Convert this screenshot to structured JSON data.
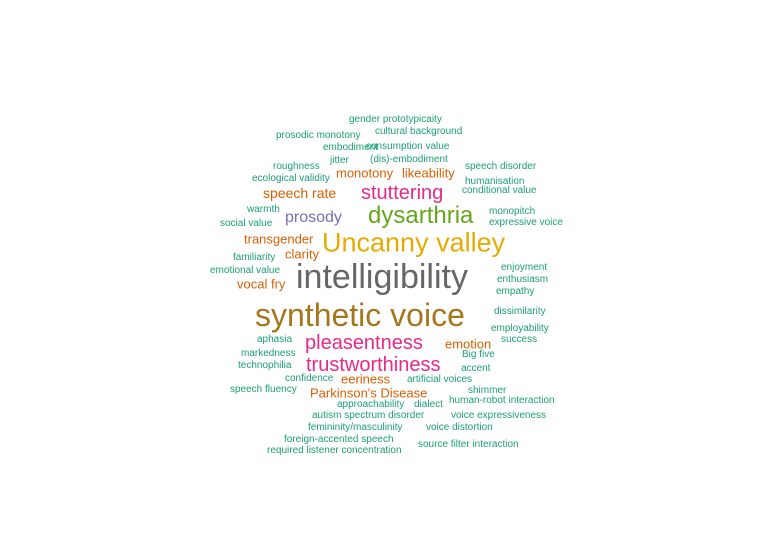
{
  "palette": {
    "teal": "#1b9e77",
    "orange": "#d95f02",
    "purple": "#7570b3",
    "pink": "#e7298a",
    "green": "#66a61e",
    "gold": "#e6ab02",
    "brown": "#a6761d",
    "gray": "#666666"
  },
  "words": [
    {
      "text": "gender prototypicaity",
      "color": "teal"
    },
    {
      "text": "prosodic monotony",
      "color": "teal"
    },
    {
      "text": "cultural background",
      "color": "teal"
    },
    {
      "text": "embodiment",
      "color": "teal"
    },
    {
      "text": "consumption value",
      "color": "teal"
    },
    {
      "text": "roughness",
      "color": "teal"
    },
    {
      "text": "jitter",
      "color": "teal"
    },
    {
      "text": "(dis)-embodiment",
      "color": "teal"
    },
    {
      "text": "speech disorder",
      "color": "teal"
    },
    {
      "text": "ecological validity",
      "color": "teal"
    },
    {
      "text": "monotony",
      "color": "orange"
    },
    {
      "text": "likeability",
      "color": "orange"
    },
    {
      "text": "humanisation",
      "color": "teal"
    },
    {
      "text": "conditional value",
      "color": "teal"
    },
    {
      "text": "speech rate",
      "color": "orange"
    },
    {
      "text": "stuttering",
      "color": "pink"
    },
    {
      "text": "warmth",
      "color": "teal"
    },
    {
      "text": "social value",
      "color": "teal"
    },
    {
      "text": "prosody",
      "color": "purple"
    },
    {
      "text": "dysarthria",
      "color": "green"
    },
    {
      "text": "monopitch",
      "color": "teal"
    },
    {
      "text": "expressive voice",
      "color": "teal"
    },
    {
      "text": "transgender",
      "color": "orange"
    },
    {
      "text": "Uncanny valley",
      "color": "gold"
    },
    {
      "text": "familiarity",
      "color": "teal"
    },
    {
      "text": "clarity",
      "color": "orange"
    },
    {
      "text": "emotional value",
      "color": "teal"
    },
    {
      "text": "intelligibility",
      "color": "gray"
    },
    {
      "text": "enjoyment",
      "color": "teal"
    },
    {
      "text": "vocal fry",
      "color": "orange"
    },
    {
      "text": "enthusiasm",
      "color": "teal"
    },
    {
      "text": "empathy",
      "color": "teal"
    },
    {
      "text": "synthetic voice",
      "color": "brown"
    },
    {
      "text": "dissimilarity",
      "color": "teal"
    },
    {
      "text": "employability",
      "color": "teal"
    },
    {
      "text": "aphasia",
      "color": "teal"
    },
    {
      "text": "pleasentness",
      "color": "pink"
    },
    {
      "text": "emotion",
      "color": "orange"
    },
    {
      "text": "success",
      "color": "teal"
    },
    {
      "text": "markedness",
      "color": "teal"
    },
    {
      "text": "Big five",
      "color": "teal"
    },
    {
      "text": "technophilia",
      "color": "teal"
    },
    {
      "text": "trustworthiness",
      "color": "pink"
    },
    {
      "text": "accent",
      "color": "teal"
    },
    {
      "text": "confidence",
      "color": "teal"
    },
    {
      "text": "eeriness",
      "color": "orange"
    },
    {
      "text": "artificial voices",
      "color": "teal"
    },
    {
      "text": "speech fluency",
      "color": "teal"
    },
    {
      "text": "Parkinson's Disease",
      "color": "orange"
    },
    {
      "text": "shimmer",
      "color": "teal"
    },
    {
      "text": "approachability",
      "color": "teal"
    },
    {
      "text": "dialect",
      "color": "teal"
    },
    {
      "text": "human-robot interaction",
      "color": "teal"
    },
    {
      "text": "autism spectrum disorder",
      "color": "teal"
    },
    {
      "text": "voice expressiveness",
      "color": "teal"
    },
    {
      "text": "femininity/masculinity",
      "color": "teal"
    },
    {
      "text": "voice distortion",
      "color": "teal"
    },
    {
      "text": "foreign-accented speech",
      "color": "teal"
    },
    {
      "text": "source filter interaction",
      "color": "teal"
    },
    {
      "text": "required listener concentration",
      "color": "teal"
    }
  ]
}
